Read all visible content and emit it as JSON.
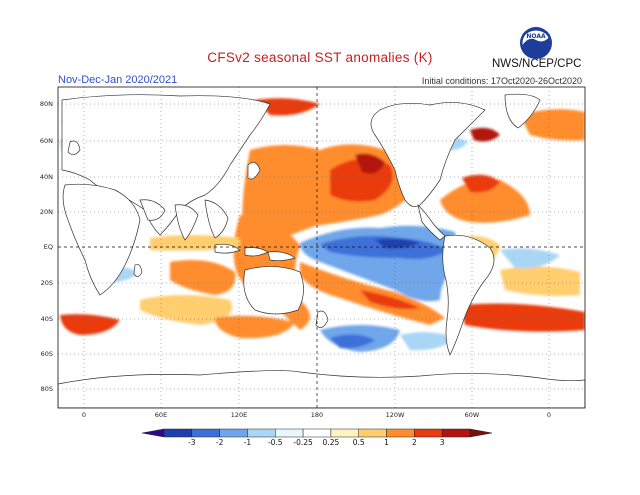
{
  "header": {
    "title": "CFSv2 seasonal SST anomalies (K)",
    "period": "Nov-Dec-Jan 2020/2021",
    "initial_conditions": "Initial conditions: 17Oct2020-26Oct2020",
    "agency": "NWS/NCEP/CPC",
    "logo_text": "NOAA"
  },
  "axes": {
    "lat_labels": [
      "80N",
      "60N",
      "40N",
      "20N",
      "EQ",
      "20S",
      "40S",
      "60S",
      "80S"
    ],
    "lon_labels": [
      "0",
      "60E",
      "120E",
      "180",
      "120W",
      "60W",
      "0"
    ]
  },
  "colorbar": {
    "labels": [
      "-3",
      "-2",
      "-1",
      "-0.5",
      "-0.25",
      "0.25",
      "0.5",
      "1",
      "2",
      "3"
    ],
    "colors": [
      "#2d0a8a",
      "#1f3fb0",
      "#3d6fd8",
      "#6fa6ea",
      "#aad6f5",
      "#e9f6fb",
      "#ffffff",
      "#fff2c2",
      "#ffce6e",
      "#ff8d2e",
      "#ea3b10",
      "#b2130f",
      "#7a0f0a"
    ]
  },
  "colors": {
    "title": "#c81e1e",
    "period": "#2f4fd0",
    "warm_strong": "#b2130f",
    "warm": "#ff8d2e",
    "warm_light": "#ffce6e",
    "cool": "#3d6fd8",
    "cool_light": "#aad6f5"
  }
}
